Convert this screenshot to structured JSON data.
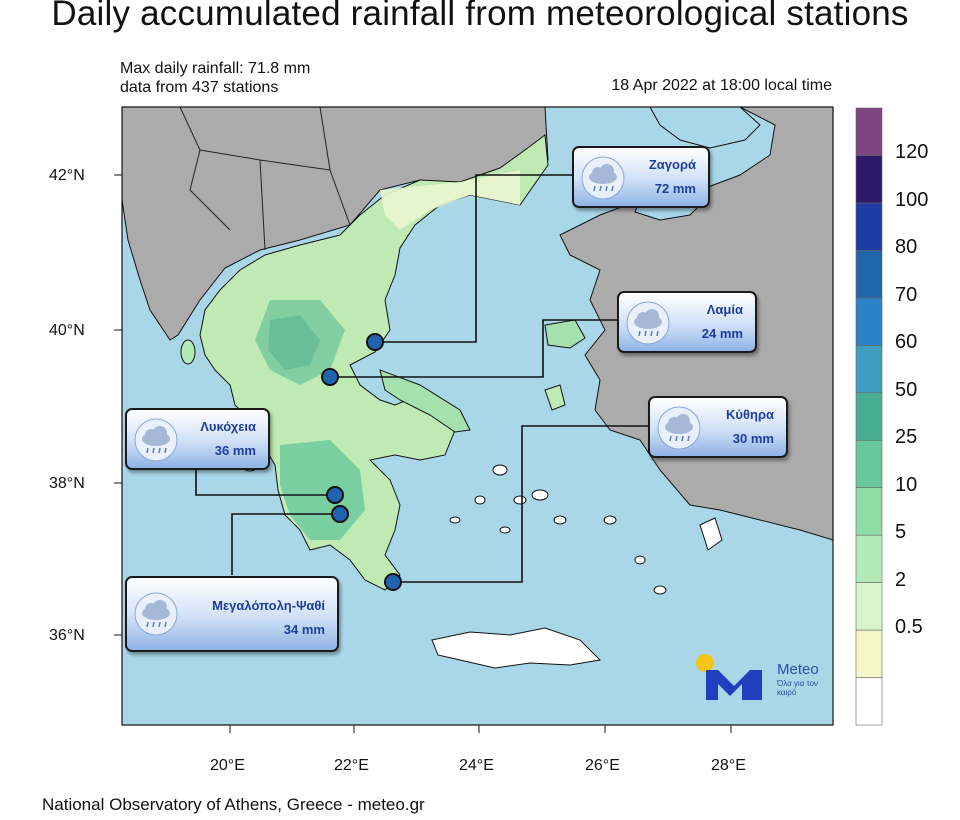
{
  "header": {
    "title": "Daily accumulated rainfall from meteorological stations",
    "max_line": "Max daily rainfall: 71.8 mm",
    "stations_line": "data from 437 stations",
    "timestamp": "18 Apr 2022 at 18:00 local time"
  },
  "axes": {
    "lat_ticks": [
      "42°N",
      "40°N",
      "38°N",
      "36°N"
    ],
    "lon_ticks": [
      "20°E",
      "22°E",
      "24°E",
      "26°E",
      "28°E"
    ]
  },
  "colorbar": {
    "labels": [
      "120",
      "100",
      "80",
      "70",
      "60",
      "50",
      "25",
      "10",
      "5",
      "2",
      "0.5"
    ],
    "colors": [
      "#ffffff",
      "#f3f6c8",
      "#d7f5c8",
      "#b3eab5",
      "#8fdca6",
      "#68c89a",
      "#48ad92",
      "#3e9dc0",
      "#2c82c6",
      "#2066a8",
      "#1f3aa3",
      "#2b1a67",
      "#7c4480"
    ]
  },
  "stations": [
    {
      "name": "Ζαγορά",
      "value": "72 mm"
    },
    {
      "name": "Λαμία",
      "value": "24 mm"
    },
    {
      "name": "Κύθηρα",
      "value": "30 mm"
    },
    {
      "name": "Λυκόχεια",
      "value": "36 mm"
    },
    {
      "name": "Μεγαλόπολη-Ψαθί",
      "value": "34 mm"
    }
  ],
  "logo": {
    "word": "Meteo",
    "tagline": "Όλα για τον καιρό"
  },
  "footer": "National Observatory of Athens, Greece - meteo.gr"
}
